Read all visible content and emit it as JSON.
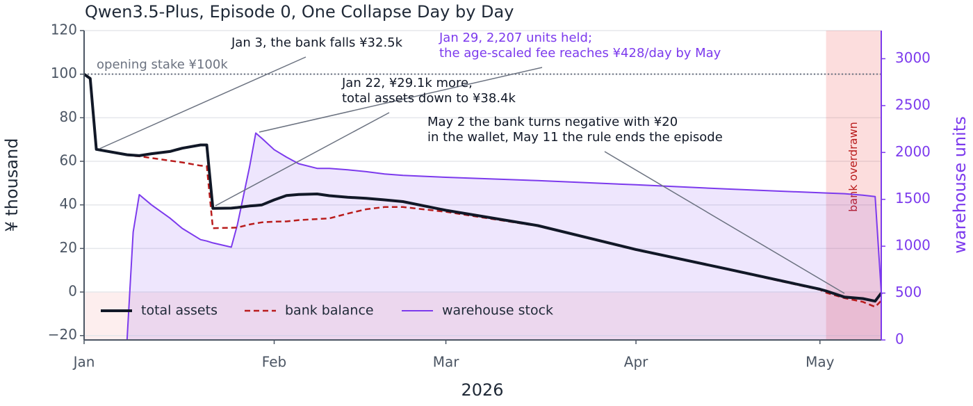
{
  "chart_data": {
    "type": "line",
    "title": "Qwen3.5-Plus, Episode 0, One Collapse Day by Day",
    "xlabel": "2026",
    "ylabel": "¥ thousand",
    "y2label": "warehouse units",
    "y2color": "#7c3aed",
    "x": [
      "2026-01-01",
      "2026-01-02",
      "2026-01-03",
      "2026-01-08",
      "2026-01-09",
      "2026-01-10",
      "2026-01-12",
      "2026-01-15",
      "2026-01-17",
      "2026-01-20",
      "2026-01-21",
      "2026-01-22",
      "2026-01-25",
      "2026-01-26",
      "2026-01-28",
      "2026-01-29",
      "2026-01-30",
      "2026-02-01",
      "2026-02-03",
      "2026-02-05",
      "2026-02-08",
      "2026-02-10",
      "2026-02-13",
      "2026-02-16",
      "2026-02-19",
      "2026-02-22",
      "2026-03-01",
      "2026-03-16",
      "2026-04-01",
      "2026-04-16",
      "2026-05-01",
      "2026-05-02",
      "2026-05-05",
      "2026-05-08",
      "2026-05-10",
      "2026-05-11"
    ],
    "series": [
      {
        "name": "total assets",
        "color": "#111827",
        "width": 4,
        "dash": "none",
        "values": [
          100,
          98,
          65.5,
          63,
          62.8,
          62.6,
          63.5,
          64.5,
          66,
          67.5,
          67.5,
          38.4,
          38.5,
          38.8,
          39.5,
          39.7,
          40,
          42.3,
          44.3,
          44.8,
          45,
          44.2,
          43.5,
          43,
          42.3,
          41.5,
          37.5,
          30.5,
          19.5,
          10.5,
          1.3,
          0.5,
          -2.3,
          -3,
          -4.2,
          -0.5
        ]
      },
      {
        "name": "bank balance",
        "color": "#b91c1c",
        "width": 2.5,
        "dash": "8 5",
        "values": [
          100,
          98,
          65.5,
          62.8,
          62.5,
          62.3,
          61.5,
          60.3,
          59.5,
          58,
          57.8,
          29.3,
          29.5,
          29.6,
          31,
          31.5,
          32,
          32.3,
          32.4,
          33,
          33.5,
          33.8,
          36,
          38,
          39,
          39,
          36.8,
          30.3,
          19.3,
          10.3,
          1,
          -0.3,
          -2.8,
          -4.5,
          -6.8,
          -4
        ]
      },
      {
        "name": "warehouse stock",
        "color": "#7c3aed",
        "width": 2,
        "dash": "none",
        "axis": "y2",
        "fill": "rgba(124,58,237,0.13)",
        "values": [
          null,
          null,
          null,
          0,
          1150,
          1550,
          1440,
          1300,
          1190,
          1070,
          1055,
          1035,
          990,
          1230,
          1850,
          2207,
          2150,
          2030,
          1950,
          1880,
          1830,
          1830,
          1815,
          1795,
          1770,
          1755,
          1735,
          1700,
          1655,
          1610,
          1570,
          1568,
          1560,
          1545,
          1530,
          510
        ]
      }
    ],
    "xlim": [
      "2026-01-01",
      "2026-05-11"
    ],
    "xticks": [
      {
        "value": "2026-01-01",
        "label": "Jan"
      },
      {
        "value": "2026-02-01",
        "label": "Feb"
      },
      {
        "value": "2026-03-01",
        "label": "Mar"
      },
      {
        "value": "2026-04-01",
        "label": "Apr"
      },
      {
        "value": "2026-05-01",
        "label": "May"
      }
    ],
    "ylim": [
      -22,
      120
    ],
    "yticks": [
      {
        "value": -20,
        "label": "−20"
      },
      0,
      20,
      40,
      60,
      80,
      100,
      120
    ],
    "y2lim": [
      0,
      3300
    ],
    "y2ticks": [
      0,
      500,
      1000,
      1500,
      2000,
      2500,
      3000
    ],
    "grid": true,
    "legend": "lower left",
    "negative_band_color": "#fdeeee",
    "reference_line": {
      "y": 100,
      "label": "opening stake ¥100k",
      "color": "#6b7280"
    },
    "span": {
      "x": [
        "2026-05-02",
        "2026-05-11"
      ],
      "label": "bank overdrawn",
      "color": "rgba(239,68,68,0.18)",
      "text_color": "#b91c1c"
    },
    "annotations": [
      {
        "lines": [
          "Jan 3, the bank falls ¥32.5k"
        ],
        "color": "#111827"
      },
      {
        "lines": [
          "Jan 29, 2,207 units held;",
          "the age-scaled fee reaches ¥428/day by May"
        ],
        "color": "#7c3aed"
      },
      {
        "lines": [
          "Jan 22, ¥29.1k more,",
          "total assets down to ¥38.4k"
        ],
        "color": "#111827"
      },
      {
        "lines": [
          "May 2 the bank turns negative with ¥20",
          "in the wallet, May 11 the rule ends the episode"
        ],
        "color": "#111827"
      }
    ]
  }
}
